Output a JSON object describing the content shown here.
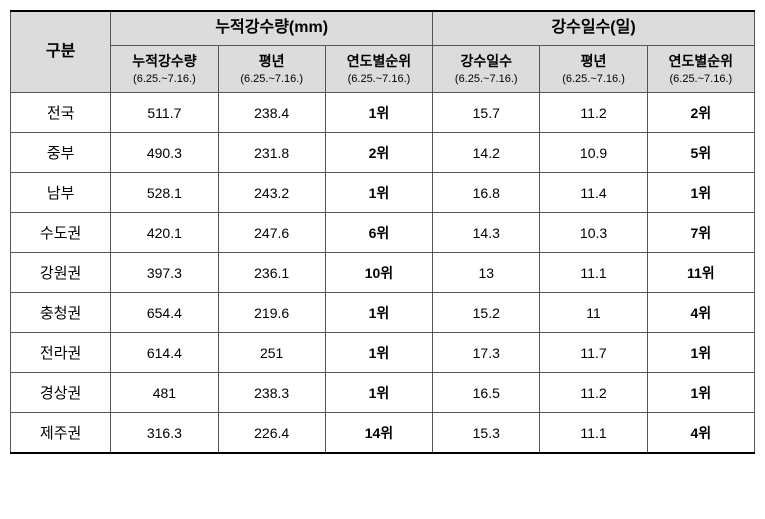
{
  "headers": {
    "category": "구분",
    "group1": "누적강수량(mm)",
    "group2": "강수일수(일)",
    "sub_period": "(6.25.~7.16.)",
    "precip_cum": "누적강수량",
    "precip_avg": "평년",
    "precip_rank": "연도별순위",
    "days_count": "강수일수",
    "days_avg": "평년",
    "days_rank": "연도별순위"
  },
  "rows": [
    {
      "region": "전국",
      "pc": "511.7",
      "pa": "238.4",
      "pr": "1위",
      "dc": "15.7",
      "da": "11.2",
      "dr": "2위"
    },
    {
      "region": "중부",
      "pc": "490.3",
      "pa": "231.8",
      "pr": "2위",
      "dc": "14.2",
      "da": "10.9",
      "dr": "5위"
    },
    {
      "region": "남부",
      "pc": "528.1",
      "pa": "243.2",
      "pr": "1위",
      "dc": "16.8",
      "da": "11.4",
      "dr": "1위"
    },
    {
      "region": "수도권",
      "pc": "420.1",
      "pa": "247.6",
      "pr": "6위",
      "dc": "14.3",
      "da": "10.3",
      "dr": "7위"
    },
    {
      "region": "강원권",
      "pc": "397.3",
      "pa": "236.1",
      "pr": "10위",
      "dc": "13",
      "da": "11.1",
      "dr": "11위"
    },
    {
      "region": "충청권",
      "pc": "654.4",
      "pa": "219.6",
      "pr": "1위",
      "dc": "15.2",
      "da": "11",
      "dr": "4위"
    },
    {
      "region": "전라권",
      "pc": "614.4",
      "pa": "251",
      "pr": "1위",
      "dc": "17.3",
      "da": "11.7",
      "dr": "1위"
    },
    {
      "region": "경상권",
      "pc": "481",
      "pa": "238.3",
      "pr": "1위",
      "dc": "16.5",
      "da": "11.2",
      "dr": "1위"
    },
    {
      "region": "제주권",
      "pc": "316.3",
      "pa": "226.4",
      "pr": "14위",
      "dc": "15.3",
      "da": "11.1",
      "dr": "4위"
    }
  ]
}
